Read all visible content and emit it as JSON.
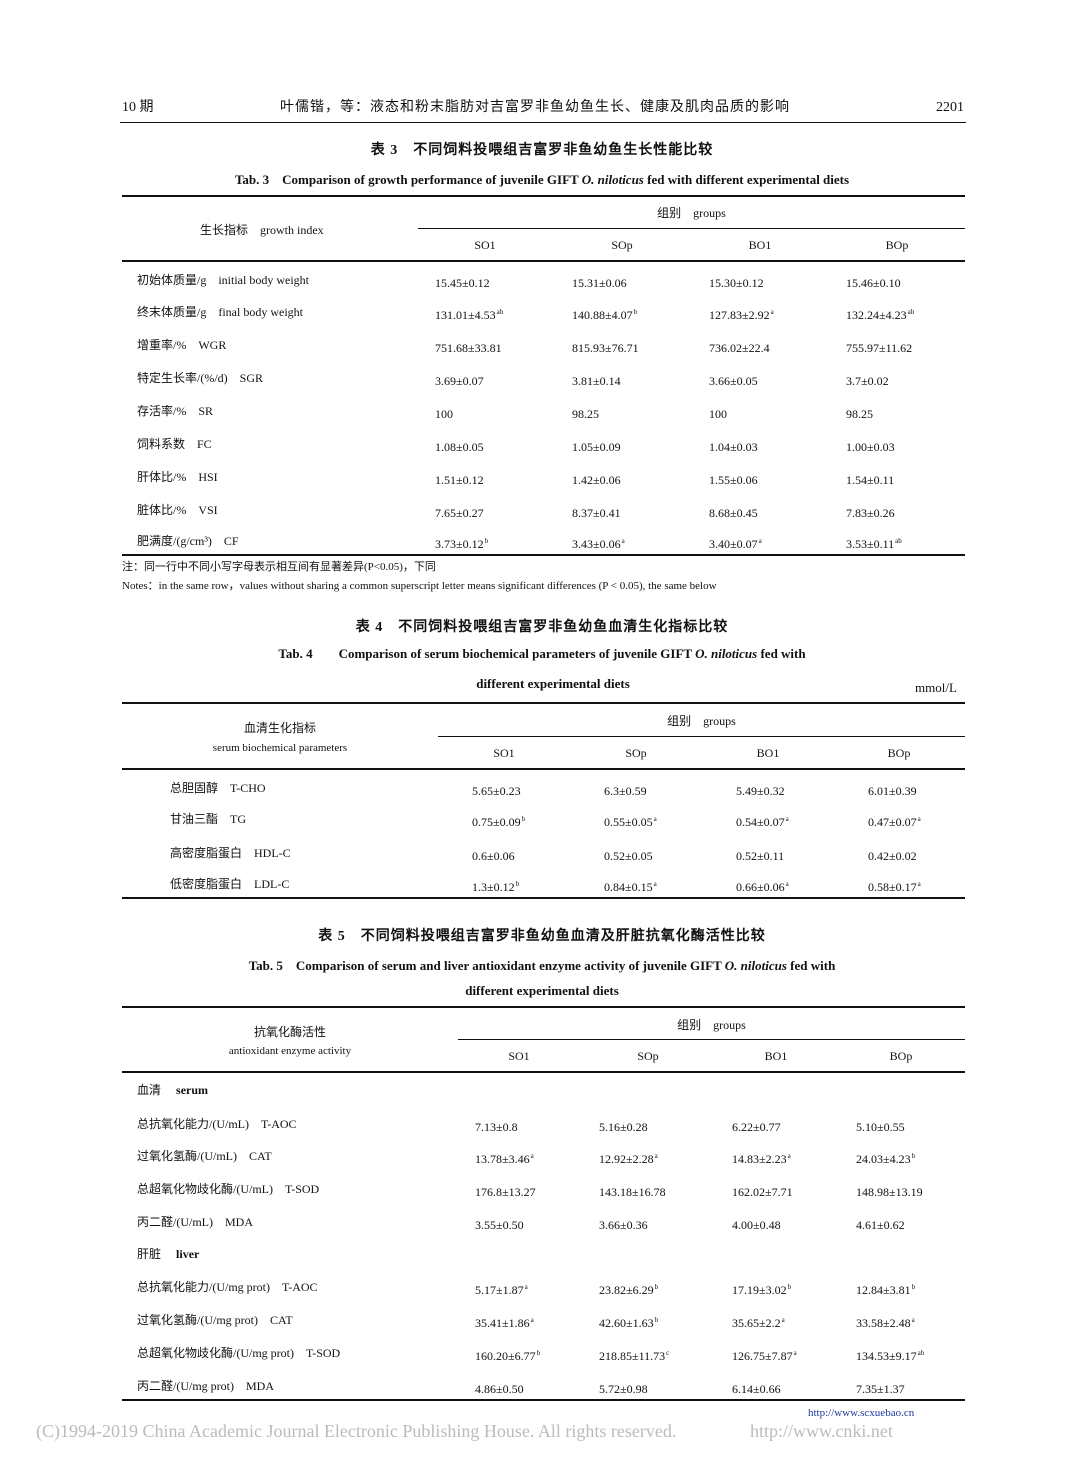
{
  "header": {
    "issue": "10 期",
    "running_title": "叶儒锴，等：液态和粉末脂肪对吉富罗非鱼幼鱼生长、健康及肌肉品质的影响",
    "page_number": "2201"
  },
  "groups_label": "组别　groups",
  "columns": [
    "SO1",
    "SOp",
    "BO1",
    "BOp"
  ],
  "table3": {
    "title_cn": "表 3　不同饲料投喂组吉富罗非鱼幼鱼生长性能比较",
    "title_en_pre": "Tab. 3　Comparison of growth performance of juvenile GIFT ",
    "title_en_species": "O. niloticus",
    "title_en_post": " fed with different experimental diets",
    "row_header": "生长指标　growth index",
    "rows": [
      {
        "label": "初始体质量/g　initial body weight",
        "cells": [
          {
            "v": "15.45±0.12",
            "s": ""
          },
          {
            "v": "15.31±0.06",
            "s": ""
          },
          {
            "v": "15.30±0.12",
            "s": ""
          },
          {
            "v": "15.46±0.10",
            "s": ""
          }
        ]
      },
      {
        "label": "终末体质量/g　final body weight",
        "cells": [
          {
            "v": "131.01±4.53",
            "s": "ab"
          },
          {
            "v": "140.88±4.07",
            "s": "b"
          },
          {
            "v": "127.83±2.92",
            "s": "a"
          },
          {
            "v": "132.24±4.23",
            "s": "ab"
          }
        ]
      },
      {
        "label": "增重率/%　WGR",
        "cells": [
          {
            "v": "751.68±33.81",
            "s": ""
          },
          {
            "v": "815.93±76.71",
            "s": ""
          },
          {
            "v": "736.02±22.4",
            "s": ""
          },
          {
            "v": "755.97±11.62",
            "s": ""
          }
        ]
      },
      {
        "label": "特定生长率/(%/d)　SGR",
        "cells": [
          {
            "v": "3.69±0.07",
            "s": ""
          },
          {
            "v": "3.81±0.14",
            "s": ""
          },
          {
            "v": "3.66±0.05",
            "s": ""
          },
          {
            "v": "3.7±0.02",
            "s": ""
          }
        ]
      },
      {
        "label": "存活率/%　SR",
        "cells": [
          {
            "v": "100",
            "s": ""
          },
          {
            "v": "98.25",
            "s": ""
          },
          {
            "v": "100",
            "s": ""
          },
          {
            "v": "98.25",
            "s": ""
          }
        ]
      },
      {
        "label": "饲料系数　FC",
        "cells": [
          {
            "v": "1.08±0.05",
            "s": ""
          },
          {
            "v": "1.05±0.09",
            "s": ""
          },
          {
            "v": "1.04±0.03",
            "s": ""
          },
          {
            "v": "1.00±0.03",
            "s": ""
          }
        ]
      },
      {
        "label": "肝体比/%　HSI",
        "cells": [
          {
            "v": "1.51±0.12",
            "s": ""
          },
          {
            "v": "1.42±0.06",
            "s": ""
          },
          {
            "v": "1.55±0.06",
            "s": ""
          },
          {
            "v": "1.54±0.11",
            "s": ""
          }
        ]
      },
      {
        "label": "脏体比/%　VSI",
        "cells": [
          {
            "v": "7.65±0.27",
            "s": ""
          },
          {
            "v": "8.37±0.41",
            "s": ""
          },
          {
            "v": "8.68±0.45",
            "s": ""
          },
          {
            "v": "7.83±0.26",
            "s": ""
          }
        ]
      },
      {
        "label": "肥满度/(g/cm³)　CF",
        "cells": [
          {
            "v": "3.73±0.12",
            "s": "b"
          },
          {
            "v": "3.43±0.06",
            "s": "a"
          },
          {
            "v": "3.40±0.07",
            "s": "a"
          },
          {
            "v": "3.53±0.11",
            "s": "ab"
          }
        ]
      }
    ],
    "note_cn": "注：同一行中不同小写字母表示相互间有显著差异(P<0.05)，下同",
    "note_en": "Notes：in the same row，values without sharing a common superscript letter means significant differences (P < 0.05), the same below"
  },
  "table4": {
    "title_cn": "表 4　不同饲料投喂组吉富罗非鱼幼鱼血清生化指标比较",
    "title_en_pre": "Tab. 4　　Comparison of serum biochemical parameters of juvenile GIFT ",
    "title_en_species": "O. niloticus",
    "title_en_post": " fed with",
    "title_en_line2": "different experimental diets",
    "unit": "mmol/L",
    "row_header_cn": "血清生化指标",
    "row_header_en": "serum biochemical parameters",
    "rows": [
      {
        "label": "总胆固醇　T-CHO",
        "cells": [
          {
            "v": "5.65±0.23",
            "s": ""
          },
          {
            "v": "6.3±0.59",
            "s": ""
          },
          {
            "v": "5.49±0.32",
            "s": ""
          },
          {
            "v": "6.01±0.39",
            "s": ""
          }
        ]
      },
      {
        "label": "甘油三酯　TG",
        "cells": [
          {
            "v": "0.75±0.09",
            "s": "b"
          },
          {
            "v": "0.55±0.05",
            "s": "a"
          },
          {
            "v": "0.54±0.07",
            "s": "a"
          },
          {
            "v": "0.47±0.07",
            "s": "a"
          }
        ]
      },
      {
        "label": "高密度脂蛋白　HDL-C",
        "cells": [
          {
            "v": "0.6±0.06",
            "s": ""
          },
          {
            "v": "0.52±0.05",
            "s": ""
          },
          {
            "v": "0.52±0.11",
            "s": ""
          },
          {
            "v": "0.42±0.02",
            "s": ""
          }
        ]
      },
      {
        "label": "低密度脂蛋白　LDL-C",
        "cells": [
          {
            "v": "1.3±0.12",
            "s": "b"
          },
          {
            "v": "0.84±0.15",
            "s": "a"
          },
          {
            "v": "0.66±0.06",
            "s": "a"
          },
          {
            "v": "0.58±0.17",
            "s": "a"
          }
        ]
      }
    ]
  },
  "table5": {
    "title_cn": "表 5　不同饲料投喂组吉富罗非鱼幼鱼血清及肝脏抗氧化酶活性比较",
    "title_en_pre": "Tab. 5　Comparison of serum and liver antioxidant enzyme activity of juvenile GIFT ",
    "title_en_species": "O. niloticus",
    "title_en_post": " fed with",
    "title_en_line2": "different experimental diets",
    "row_header_cn": "抗氧化酶活性",
    "row_header_en": "antioxidant enzyme activity",
    "sections": [
      {
        "cn": "血清",
        "en": "serum",
        "rows": [
          {
            "label": "总抗氧化能力/(U/mL)　T-AOC",
            "cells": [
              {
                "v": "7.13±0.8",
                "s": ""
              },
              {
                "v": "5.16±0.28",
                "s": ""
              },
              {
                "v": "6.22±0.77",
                "s": ""
              },
              {
                "v": "5.10±0.55",
                "s": ""
              }
            ]
          },
          {
            "label": "过氧化氢酶/(U/mL)　CAT",
            "cells": [
              {
                "v": "13.78±3.46",
                "s": "a"
              },
              {
                "v": "12.92±2.28",
                "s": "a"
              },
              {
                "v": "14.83±2.23",
                "s": "a"
              },
              {
                "v": "24.03±4.23",
                "s": "b"
              }
            ]
          },
          {
            "label": "总超氧化物歧化酶/(U/mL)　T-SOD",
            "cells": [
              {
                "v": "176.8±13.27",
                "s": ""
              },
              {
                "v": "143.18±16.78",
                "s": ""
              },
              {
                "v": "162.02±7.71",
                "s": ""
              },
              {
                "v": "148.98±13.19",
                "s": ""
              }
            ]
          },
          {
            "label": "丙二醛/(U/mL)　MDA",
            "cells": [
              {
                "v": "3.55±0.50",
                "s": ""
              },
              {
                "v": "3.66±0.36",
                "s": ""
              },
              {
                "v": "4.00±0.48",
                "s": ""
              },
              {
                "v": "4.61±0.62",
                "s": ""
              }
            ]
          }
        ]
      },
      {
        "cn": "肝脏",
        "en": "liver",
        "rows": [
          {
            "label": "总抗氧化能力/(U/mg prot)　T-AOC",
            "cells": [
              {
                "v": "5.17±1.87",
                "s": "a"
              },
              {
                "v": "23.82±6.29",
                "s": "b"
              },
              {
                "v": "17.19±3.02",
                "s": "b"
              },
              {
                "v": "12.84±3.81",
                "s": "b"
              }
            ]
          },
          {
            "label": "过氧化氢酶/(U/mg prot)　CAT",
            "cells": [
              {
                "v": "35.41±1.86",
                "s": "a"
              },
              {
                "v": "42.60±1.63",
                "s": "b"
              },
              {
                "v": "35.65±2.2",
                "s": "a"
              },
              {
                "v": "33.58±2.48",
                "s": "a"
              }
            ]
          },
          {
            "label": "总超氧化物歧化酶/(U/mg prot)　T-SOD",
            "cells": [
              {
                "v": "160.20±6.77",
                "s": "b"
              },
              {
                "v": "218.85±11.73",
                "s": "c"
              },
              {
                "v": "126.75±7.87",
                "s": "a"
              },
              {
                "v": "134.53±9.17",
                "s": "ab"
              }
            ]
          },
          {
            "label": "丙二醛/(U/mg prot)　MDA",
            "cells": [
              {
                "v": "4.86±0.50",
                "s": ""
              },
              {
                "v": "5.72±0.98",
                "s": ""
              },
              {
                "v": "6.14±0.66",
                "s": ""
              },
              {
                "v": "7.35±1.37",
                "s": ""
              }
            ]
          }
        ]
      }
    ]
  },
  "footer": {
    "site_url": "http://www.scxuebao.cn",
    "copyright": "(C)1994-2019 China Academic Journal Electronic Publishing House. All rights reserved.",
    "cnki_url": "http://www.cnki.net"
  }
}
